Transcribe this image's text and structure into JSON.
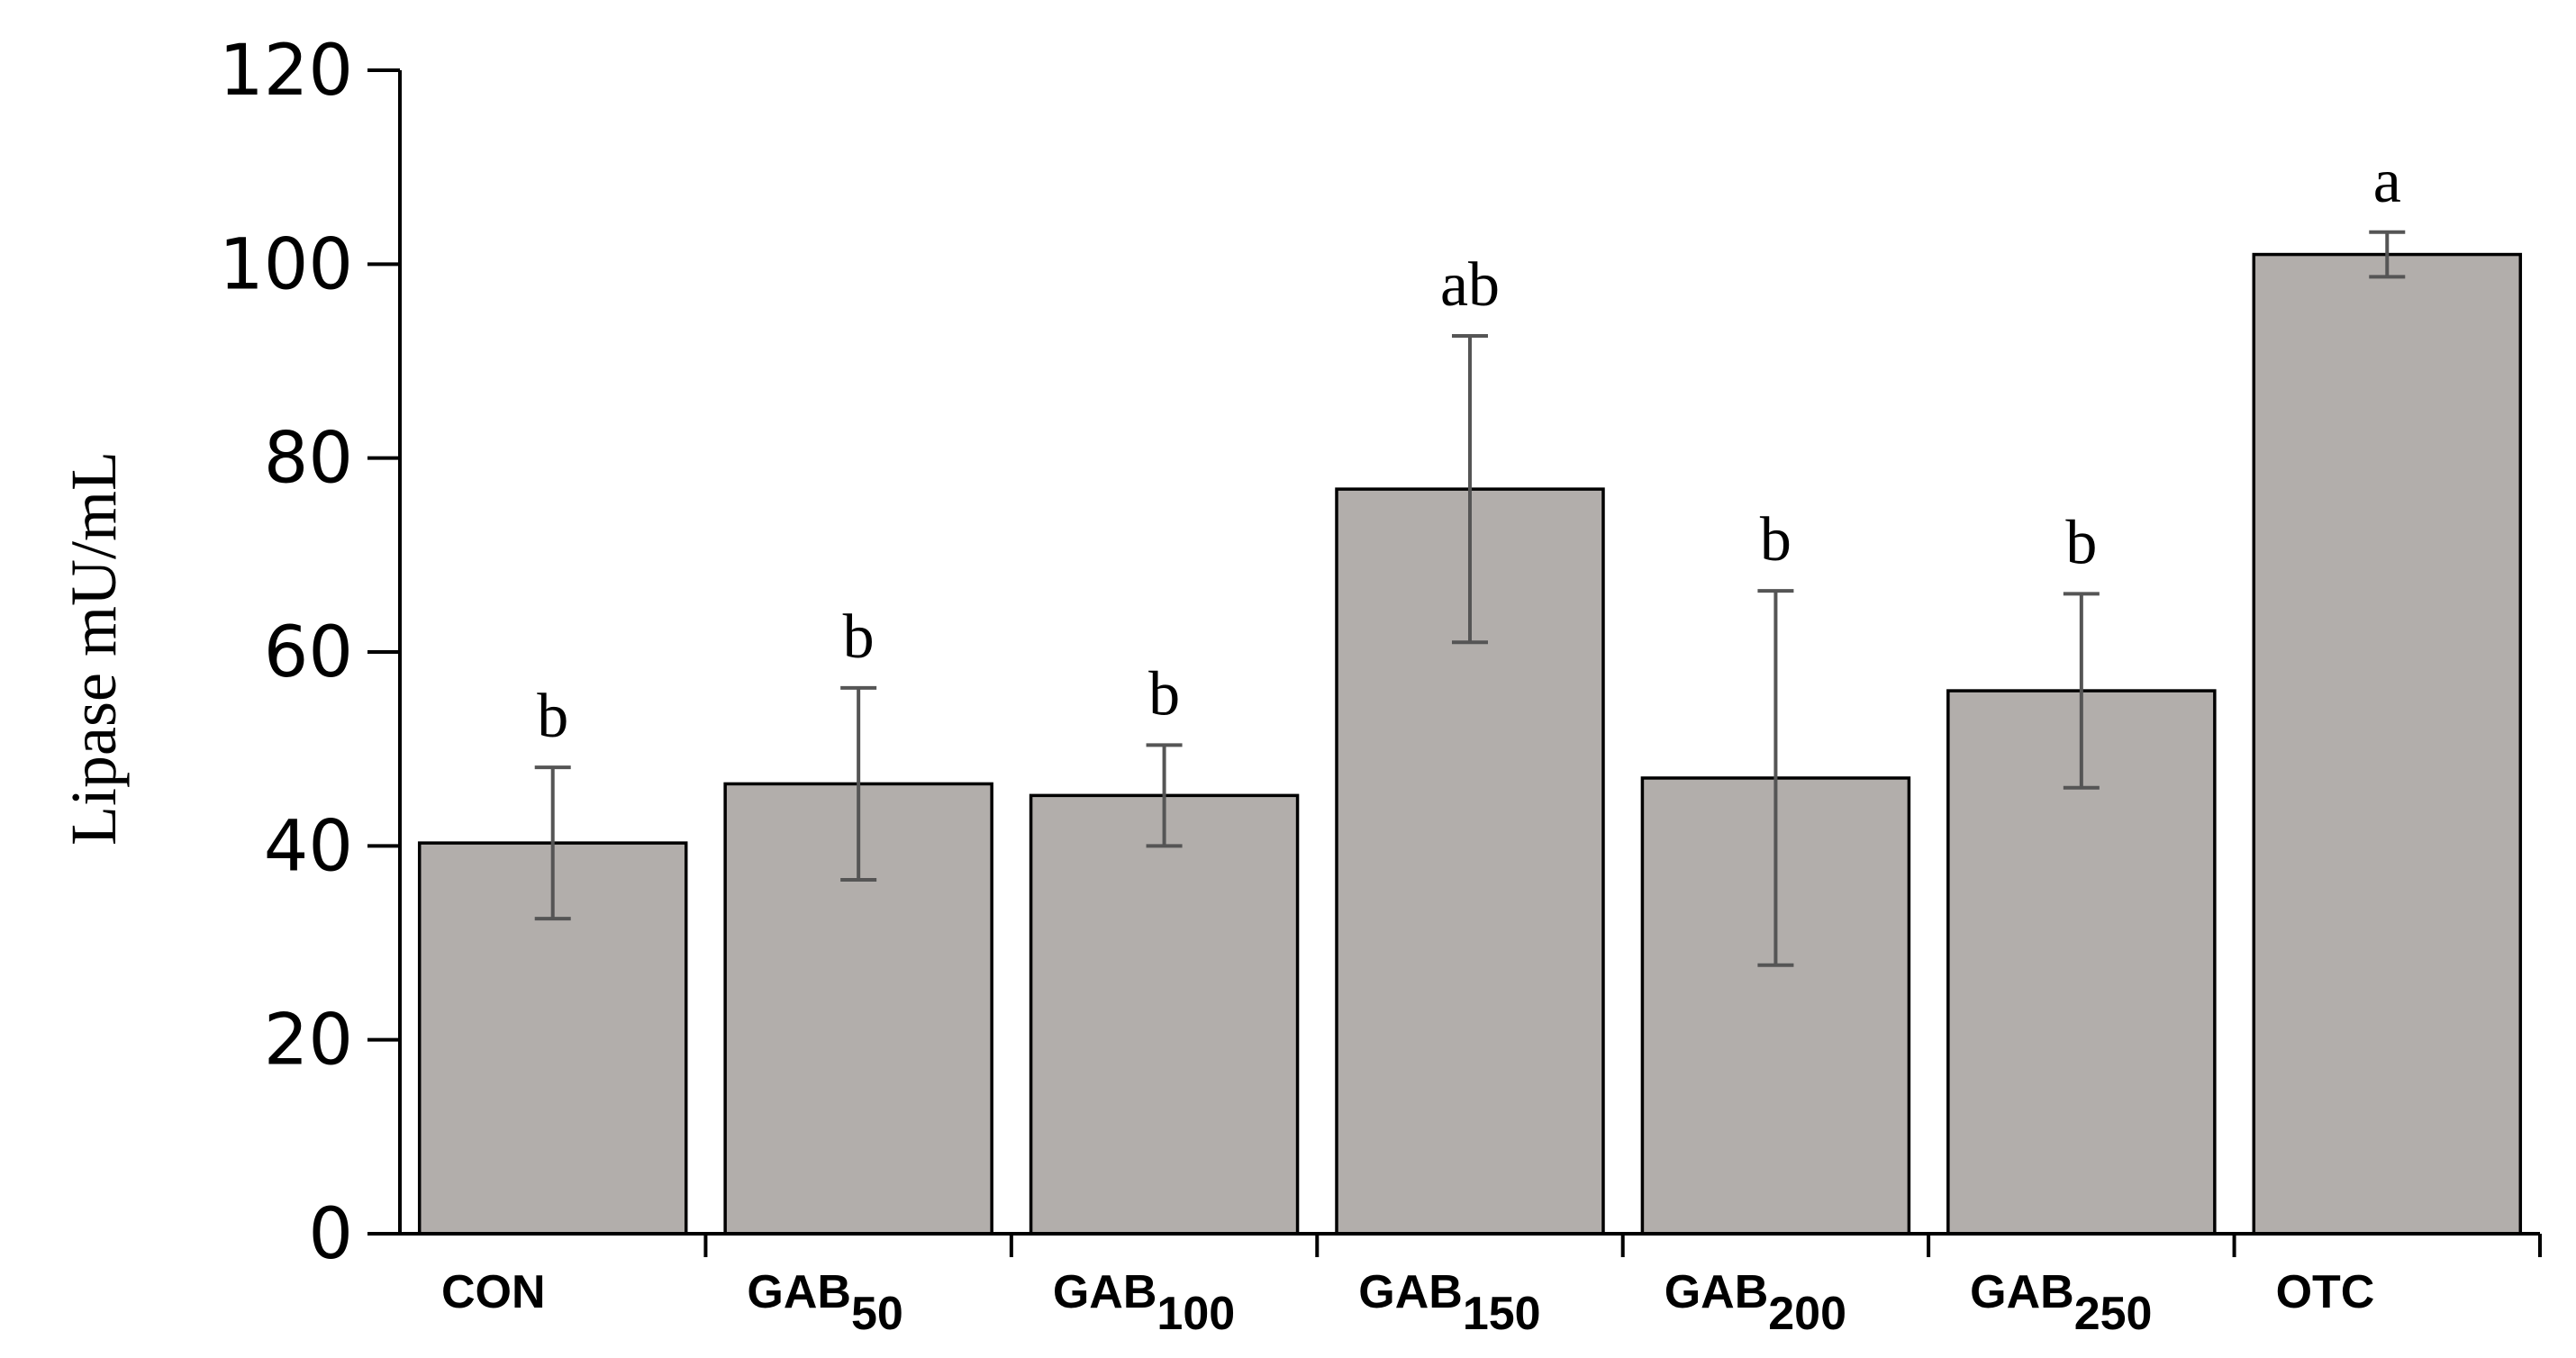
{
  "chart_data": {
    "type": "bar",
    "title": "",
    "xlabel": "",
    "ylabel": "Lipase mU/mL",
    "ylim": [
      0,
      120
    ],
    "yticks": [
      0,
      20,
      40,
      60,
      80,
      100,
      120
    ],
    "grid": false,
    "categories": [
      {
        "main": "CON",
        "sub": ""
      },
      {
        "main": "GAB",
        "sub": "50"
      },
      {
        "main": "GAB",
        "sub": "100"
      },
      {
        "main": "GAB",
        "sub": "150"
      },
      {
        "main": "GAB",
        "sub": "200"
      },
      {
        "main": "GAB",
        "sub": "250"
      },
      {
        "main": "OTC",
        "sub": ""
      }
    ],
    "values": [
      40.3,
      46.4,
      45.2,
      76.8,
      47.0,
      56.0,
      101.0
    ],
    "errors": [
      7.8,
      9.9,
      5.2,
      15.8,
      19.3,
      10.0,
      2.3
    ],
    "significance": [
      "b",
      "b",
      "b",
      "ab",
      "b",
      "b",
      "a"
    ],
    "colors": {
      "bar": "#b2aeab",
      "bar_edge": "#000000",
      "error": "#555555",
      "axis": "#000000"
    }
  }
}
